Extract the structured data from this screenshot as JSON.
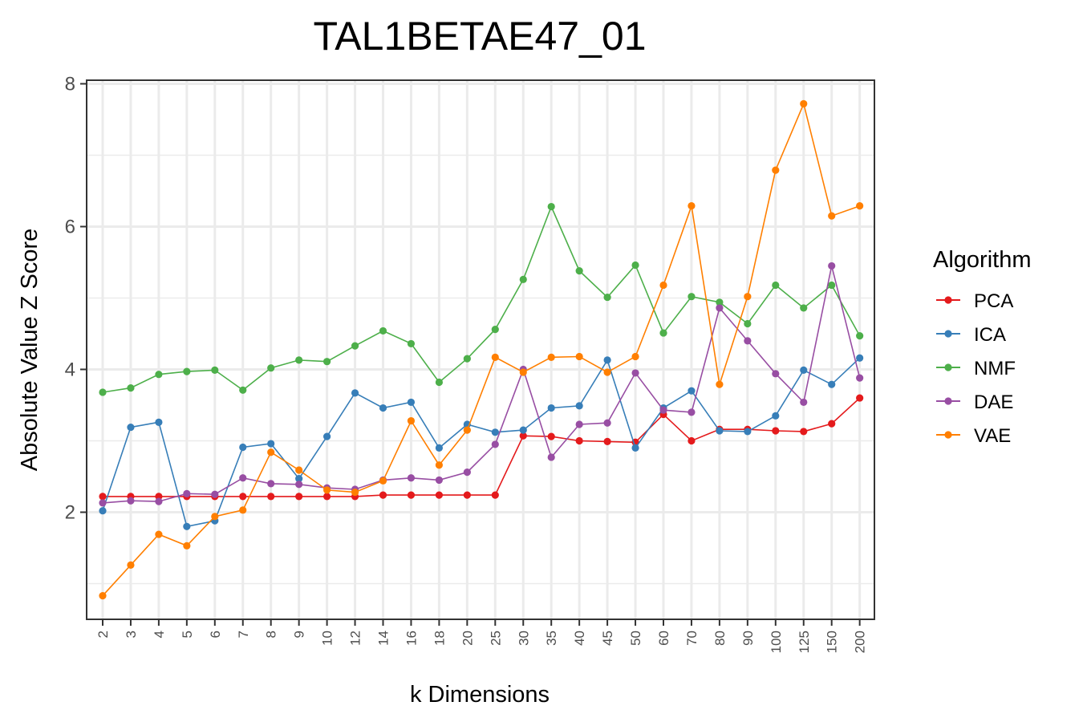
{
  "chart_data": {
    "type": "line",
    "title": "TAL1BETAE47_01",
    "xlabel": "k Dimensions",
    "ylabel": "Absolute Value Z Score",
    "categories": [
      "2",
      "3",
      "4",
      "5",
      "6",
      "7",
      "8",
      "9",
      "10",
      "12",
      "14",
      "16",
      "18",
      "20",
      "25",
      "30",
      "35",
      "40",
      "45",
      "50",
      "60",
      "70",
      "80",
      "90",
      "100",
      "125",
      "150",
      "200"
    ],
    "y_ticks": [
      "2",
      "4",
      "6",
      "8"
    ],
    "ylim": [
      0.5,
      8.05
    ],
    "grid": true,
    "legend": {
      "title": "Algorithm",
      "position": "right"
    },
    "series": [
      {
        "name": "PCA",
        "color": "#e41a1c",
        "values": [
          2.22,
          2.22,
          2.22,
          2.22,
          2.22,
          2.22,
          2.22,
          2.22,
          2.22,
          2.22,
          2.24,
          2.24,
          2.24,
          2.24,
          2.24,
          3.07,
          3.06,
          3.0,
          2.99,
          2.98,
          3.37,
          3.0,
          3.16,
          3.16,
          3.14,
          3.13,
          3.24,
          3.6
        ]
      },
      {
        "name": "ICA",
        "color": "#377eb8",
        "values": [
          2.02,
          3.19,
          3.26,
          1.8,
          1.88,
          2.91,
          2.96,
          2.47,
          3.06,
          3.67,
          3.46,
          3.54,
          2.9,
          3.23,
          3.12,
          3.15,
          3.46,
          3.49,
          4.13,
          2.9,
          3.46,
          3.7,
          3.14,
          3.13,
          3.35,
          3.99,
          3.79,
          4.16
        ]
      },
      {
        "name": "NMF",
        "color": "#4daf4a",
        "values": [
          3.68,
          3.74,
          3.93,
          3.97,
          3.99,
          3.71,
          4.02,
          4.13,
          4.11,
          4.33,
          4.54,
          4.36,
          3.82,
          4.15,
          4.56,
          5.26,
          6.28,
          5.38,
          5.01,
          5.46,
          4.51,
          5.02,
          4.94,
          4.64,
          5.18,
          4.86,
          5.18,
          4.47
        ]
      },
      {
        "name": "DAE",
        "color": "#984ea3",
        "values": [
          2.13,
          2.16,
          2.15,
          2.26,
          2.25,
          2.48,
          2.4,
          2.39,
          2.34,
          2.32,
          2.45,
          2.48,
          2.45,
          2.56,
          2.95,
          4.0,
          2.77,
          3.23,
          3.25,
          3.95,
          3.43,
          3.4,
          4.86,
          4.4,
          3.94,
          3.54,
          5.45,
          3.88
        ]
      },
      {
        "name": "VAE",
        "color": "#ff7f00",
        "values": [
          0.83,
          1.26,
          1.69,
          1.53,
          1.94,
          2.03,
          2.84,
          2.59,
          2.31,
          2.28,
          2.44,
          3.28,
          2.66,
          3.15,
          4.17,
          3.96,
          4.17,
          4.18,
          3.96,
          4.18,
          5.18,
          6.29,
          3.79,
          5.02,
          6.79,
          7.72,
          6.15,
          6.29
        ]
      }
    ]
  }
}
